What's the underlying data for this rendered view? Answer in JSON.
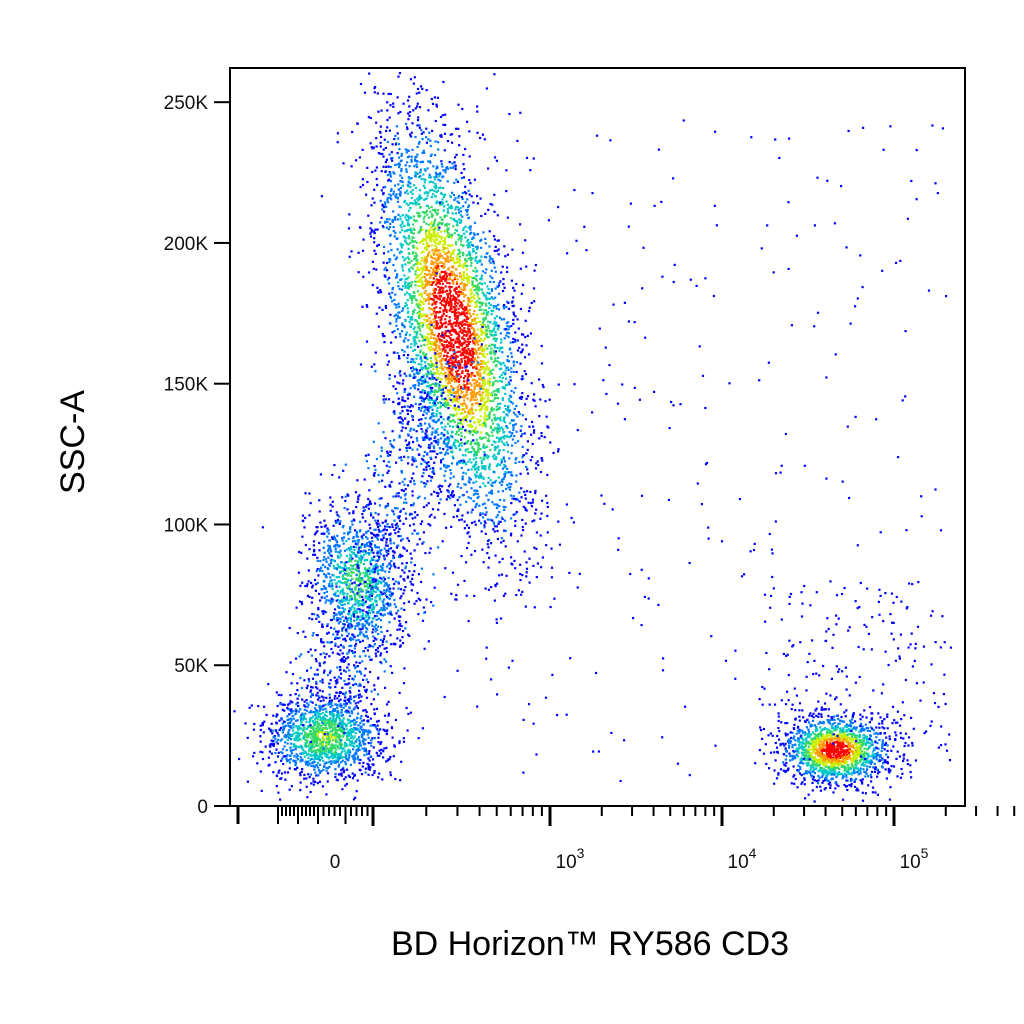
{
  "chart_data": {
    "type": "scatter",
    "title": "",
    "xlabel": "BD Horizon™ RY586 CD3",
    "ylabel": "SSC-A",
    "x_scale": "biexponential",
    "x_tick_labels": [
      {
        "value": 0,
        "base": "0",
        "exp": ""
      },
      {
        "value": 1000,
        "base": "10",
        "exp": "3"
      },
      {
        "value": 10000,
        "base": "10",
        "exp": "4"
      },
      {
        "value": 100000,
        "base": "10",
        "exp": "5"
      }
    ],
    "y_tick_labels": [
      {
        "value": 0,
        "label": "0"
      },
      {
        "value": 50000,
        "label": "50K"
      },
      {
        "value": 100000,
        "label": "100K"
      },
      {
        "value": 150000,
        "label": "150K"
      },
      {
        "value": 200000,
        "label": "200K"
      },
      {
        "value": 250000,
        "label": "250K"
      }
    ],
    "ylim": [
      0,
      262144
    ],
    "grid": false,
    "density_colormap": [
      "#0000ff",
      "#0077ff",
      "#00c8c8",
      "#33d966",
      "#ccee00",
      "#ff9900",
      "#ff0000"
    ],
    "populations": [
      {
        "x_center": 10,
        "y_center": 25000,
        "density": "medium"
      },
      {
        "x_center": 60,
        "y_center": 80000,
        "density": "medium"
      },
      {
        "x_center": 260,
        "y_center": 170000,
        "density": "high"
      },
      {
        "x_center": 45000,
        "y_center": 22000,
        "density": "high"
      }
    ]
  }
}
